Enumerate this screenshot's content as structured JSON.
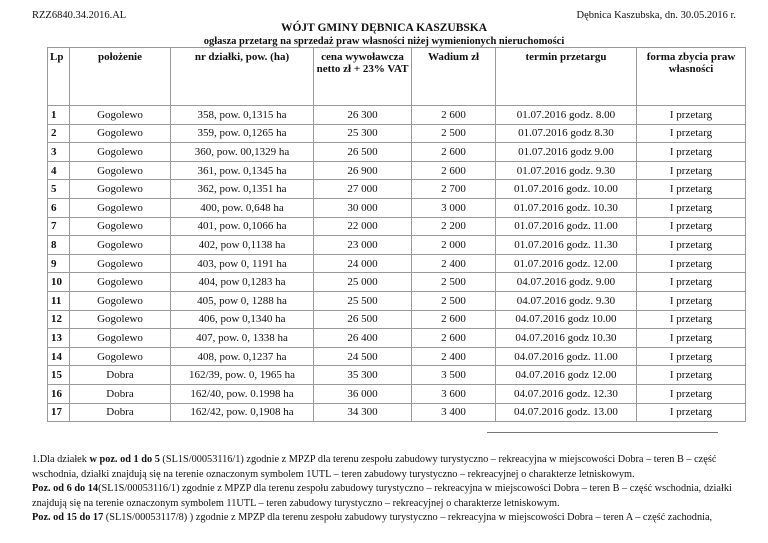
{
  "header": {
    "reference": "RZZ6840.34.2016.AL",
    "place_date": "Dębnica Kaszubska, dn. 30.05.2016 r.",
    "title": "WÓJT GMINY DĘBNICA KASZUBSKA",
    "subtitle": "ogłasza przetarg na sprzedaż praw własności niżej wymienionych nieruchomości"
  },
  "table": {
    "columns": [
      "Lp",
      "położenie",
      "nr działki, pow. (ha)",
      "cena wywoławcza netto zł + 23% VAT",
      "Wadium zł",
      "termin przetargu",
      "forma zbycia praw własności"
    ],
    "rows": [
      [
        "1",
        "Gogolewo",
        "358, pow.  0,1315 ha",
        "26 300",
        "2 600",
        "01.07.2016 godz. 8.00",
        "I przetarg"
      ],
      [
        "2",
        "Gogolewo",
        "359, pow.  0,1265 ha",
        "25 300",
        "2 500",
        "01.07.2016 godz  8.30",
        "I przetarg"
      ],
      [
        "3",
        "Gogolewo",
        "360, pow.  00,1329 ha",
        "26 500",
        "2 600",
        "01.07.2016 godz  9.00",
        "I przetarg"
      ],
      [
        "4",
        "Gogolewo",
        "361, pow. 0,1345 ha",
        "26 900",
        "2 600",
        "01.07.2016 godz. 9.30",
        "I przetarg"
      ],
      [
        "5",
        "Gogolewo",
        "362, pow. 0,1351 ha",
        "27 000",
        "2 700",
        "01.07.2016 godz. 10.00",
        "I przetarg"
      ],
      [
        "6",
        "Gogolewo",
        "400, pow. 0,648 ha",
        "30 000",
        "3 000",
        "01.07.2016 godz. 10.30",
        "I przetarg"
      ],
      [
        "7",
        "Gogolewo",
        "401, pow. 0,1066 ha",
        "22 000",
        "2 200",
        "01.07.2016 godz. 11.00",
        "I przetarg"
      ],
      [
        "8",
        "Gogolewo",
        "402, pow 0,1138 ha",
        "23 000",
        "2 000",
        "01.07.2016 godz. 11.30",
        "I przetarg"
      ],
      [
        "9",
        "Gogolewo",
        "403, pow 0, 1191 ha",
        "24 000",
        "2 400",
        "01.07.2016 godz. 12.00",
        "I przetarg"
      ],
      [
        "10",
        "Gogolewo",
        "404, pow 0,1283 ha",
        "25 000",
        "2 500",
        "04.07.2016 godz. 9.00",
        "I przetarg"
      ],
      [
        "11",
        "Gogolewo",
        "405, pow 0, 1288 ha",
        "25 500",
        "2 500",
        "04.07.2016 godz. 9.30",
        "I przetarg"
      ],
      [
        "12",
        "Gogolewo",
        "406, pow 0,1340 ha",
        "26 500",
        "2 600",
        "04.07.2016 godz 10.00",
        "I przetarg"
      ],
      [
        "13",
        "Gogolewo",
        "407, pow. 0, 1338 ha",
        "26 400",
        "2 600",
        "04.07.2016 godz 10.30",
        "I przetarg"
      ],
      [
        "14",
        "Gogolewo",
        "408, pow. 0,1237 ha",
        "24 500",
        "2 400",
        "04.07.2016 godz. 11.00",
        "I przetarg"
      ],
      [
        "15",
        "Dobra",
        "162/39, pow. 0, 1965 ha",
        "35 300",
        "3 500",
        "04.07.2016 godz 12.00",
        "I przetarg"
      ],
      [
        "16",
        "Dobra",
        "162/40, pow. 0.1998 ha",
        "36 000",
        "3 600",
        "04.07.2016 godz. 12.30",
        "I przetarg"
      ],
      [
        "17",
        "Dobra",
        "162/42, pow. 0,1908 ha",
        "34 300",
        "3 400",
        "04.07.2016 godz. 13.00",
        "I przetarg"
      ]
    ]
  },
  "notes": [
    {
      "prefix": "1.Dla działek ",
      "bold": "w poz. od 1 do 5",
      "text": " (SL1S/00053116/1) zgodnie z MPZP dla terenu zespołu zabudowy turystyczno – rekreacyjna w miejscowości Dobra – teren B – część wschodnia, działki znajdują się na terenie oznaczonym symbolem 1UTL – teren zabudowy turystyczno – rekreacyjnej o charakterze letniskowym."
    },
    {
      "prefix": "",
      "bold": "Poz. od 6 do 14",
      "text": "(SL1S/00053116/1) zgodnie z MPZP dla terenu zespołu zabudowy turystyczno – rekreacyjna w miejscowości Dobra – teren B – część wschodnia, działki znajdują się na terenie oznaczonym symbolem 11UTL – teren zabudowy turystyczno – rekreacyjnej o charakterze letniskowym."
    },
    {
      "prefix": "",
      "bold": "Poz. od 15 do 17",
      "text": " (SL1S/00053117/8) ) zgodnie z MPZP dla terenu zespołu zabudowy turystyczno – rekreacyjna w miejscowości Dobra – teren A – część zachodnia,"
    }
  ]
}
